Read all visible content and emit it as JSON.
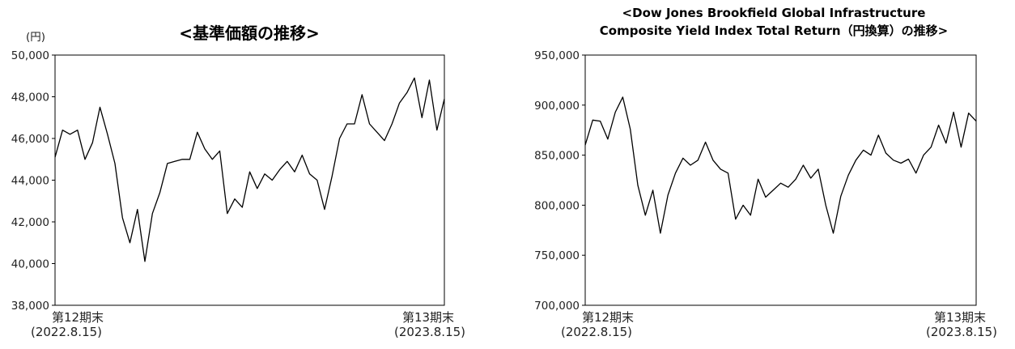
{
  "chart_data": [
    {
      "type": "line",
      "title": "<基準価額の推移>",
      "y_unit": "(円)",
      "ylim": [
        38000,
        50000
      ],
      "yticks": [
        "38,000",
        "40,000",
        "42,000",
        "44,000",
        "46,000",
        "48,000",
        "50,000"
      ],
      "x_start": {
        "label": "第12期末",
        "date": "(2022.8.15)"
      },
      "x_end": {
        "label": "第13期末",
        "date": "(2023.8.15)"
      },
      "grid": false,
      "series": [
        {
          "x": [
            "2022-08-15",
            "2022-08-22",
            "2022-08-29",
            "2022-09-05",
            "2022-09-12",
            "2022-09-19",
            "2022-09-26",
            "2022-10-03",
            "2022-10-10",
            "2022-10-17",
            "2022-10-24",
            "2022-10-31",
            "2022-11-07",
            "2022-11-14",
            "2022-11-21",
            "2022-11-28",
            "2022-12-05",
            "2022-12-12",
            "2022-12-19",
            "2022-12-26",
            "2023-01-02",
            "2023-01-09",
            "2023-01-16",
            "2023-01-23",
            "2023-01-30",
            "2023-02-06",
            "2023-02-13",
            "2023-02-20",
            "2023-02-27",
            "2023-03-06",
            "2023-03-13",
            "2023-03-20",
            "2023-03-27",
            "2023-04-03",
            "2023-04-10",
            "2023-04-17",
            "2023-04-24",
            "2023-05-01",
            "2023-05-08",
            "2023-05-15",
            "2023-05-22",
            "2023-05-29",
            "2023-06-05",
            "2023-06-12",
            "2023-06-19",
            "2023-06-26",
            "2023-07-03",
            "2023-07-10",
            "2023-07-17",
            "2023-07-24",
            "2023-07-31",
            "2023-08-07",
            "2023-08-15"
          ],
          "values": [
            45100,
            46400,
            46200,
            46400,
            45000,
            45800,
            47500,
            46200,
            44800,
            42200,
            41000,
            42600,
            40100,
            42400,
            43400,
            44800,
            44900,
            45000,
            45000,
            46300,
            45500,
            45000,
            45400,
            42400,
            43100,
            42700,
            44400,
            43600,
            44300,
            44000,
            44500,
            44900,
            44400,
            45200,
            44300,
            44000,
            42600,
            44200,
            46000,
            46700,
            46700,
            48100,
            46700,
            46300,
            45900,
            46700,
            47700,
            48200,
            48900,
            47000,
            48800,
            46400,
            47900
          ]
        }
      ]
    },
    {
      "type": "line",
      "title": "<Dow Jones Brookfield Global Infrastructure",
      "title2": "Composite Yield Index Total Return（円換算）の推移>",
      "ylim": [
        700000,
        950000
      ],
      "yticks": [
        "700,000",
        "750,000",
        "800,000",
        "850,000",
        "900,000",
        "950,000"
      ],
      "x_start": {
        "label": "第12期末",
        "date": "(2022.8.15)"
      },
      "x_end": {
        "label": "第13期末",
        "date": "(2023.8.15)"
      },
      "grid": false,
      "series": [
        {
          "x": [
            "2022-08-15",
            "2022-08-22",
            "2022-08-29",
            "2022-09-05",
            "2022-09-12",
            "2022-09-19",
            "2022-09-26",
            "2022-10-03",
            "2022-10-10",
            "2022-10-17",
            "2022-10-24",
            "2022-10-31",
            "2022-11-07",
            "2022-11-14",
            "2022-11-21",
            "2022-11-28",
            "2022-12-05",
            "2022-12-12",
            "2022-12-19",
            "2022-12-26",
            "2023-01-02",
            "2023-01-09",
            "2023-01-16",
            "2023-01-23",
            "2023-01-30",
            "2023-02-06",
            "2023-02-13",
            "2023-02-20",
            "2023-02-27",
            "2023-03-06",
            "2023-03-13",
            "2023-03-20",
            "2023-03-27",
            "2023-04-03",
            "2023-04-10",
            "2023-04-17",
            "2023-04-24",
            "2023-05-01",
            "2023-05-08",
            "2023-05-15",
            "2023-05-22",
            "2023-05-29",
            "2023-06-05",
            "2023-06-12",
            "2023-06-19",
            "2023-06-26",
            "2023-07-03",
            "2023-07-10",
            "2023-07-17",
            "2023-07-24",
            "2023-07-31",
            "2023-08-07",
            "2023-08-15"
          ],
          "values": [
            860000,
            885000,
            884000,
            866000,
            893000,
            908000,
            876000,
            820000,
            790000,
            815000,
            772000,
            810000,
            832000,
            847000,
            840000,
            845000,
            863000,
            845000,
            836000,
            832000,
            786000,
            800000,
            790000,
            826000,
            808000,
            815000,
            822000,
            818000,
            826000,
            840000,
            827000,
            836000,
            800000,
            772000,
            809000,
            830000,
            845000,
            855000,
            850000,
            870000,
            852000,
            845000,
            842000,
            846000,
            832000,
            850000,
            858000,
            880000,
            862000,
            893000,
            858000,
            892000,
            884000
          ]
        }
      ]
    }
  ]
}
